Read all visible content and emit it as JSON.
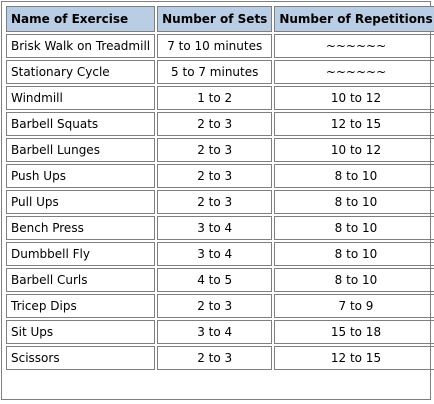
{
  "table": {
    "headers": [
      "Name of Exercise",
      "Number of Sets",
      "Number of Repetitions"
    ],
    "rows": [
      [
        "Brisk Walk on Treadmill",
        "7 to 10 minutes",
        "~~~~~~"
      ],
      [
        "Stationary Cycle",
        "5 to 7 minutes",
        "~~~~~~"
      ],
      [
        "Windmill",
        "1 to 2",
        "10 to 12"
      ],
      [
        "Barbell Squats",
        "2 to 3",
        "12 to 15"
      ],
      [
        "Barbell Lunges",
        "2 to 3",
        "10 to 12"
      ],
      [
        "Push Ups",
        "2 to 3",
        "8 to 10"
      ],
      [
        "Pull Ups",
        "2 to 3",
        "8 to 10"
      ],
      [
        "Bench Press",
        "3 to 4",
        "8 to 10"
      ],
      [
        "Dumbbell Fly",
        "3 to 4",
        "8 to 10"
      ],
      [
        "Barbell Curls",
        "4 to 5",
        "8 to 10"
      ],
      [
        "Tricep Dips",
        "2 to 3",
        "7 to 9"
      ],
      [
        "Sit Ups",
        "3 to 4",
        "15 to 18"
      ],
      [
        "Scissors",
        "2 to 3",
        "12 to 15"
      ]
    ]
  },
  "colors": {
    "header_background": "#b9cde5",
    "border": "#7f7f7f"
  }
}
